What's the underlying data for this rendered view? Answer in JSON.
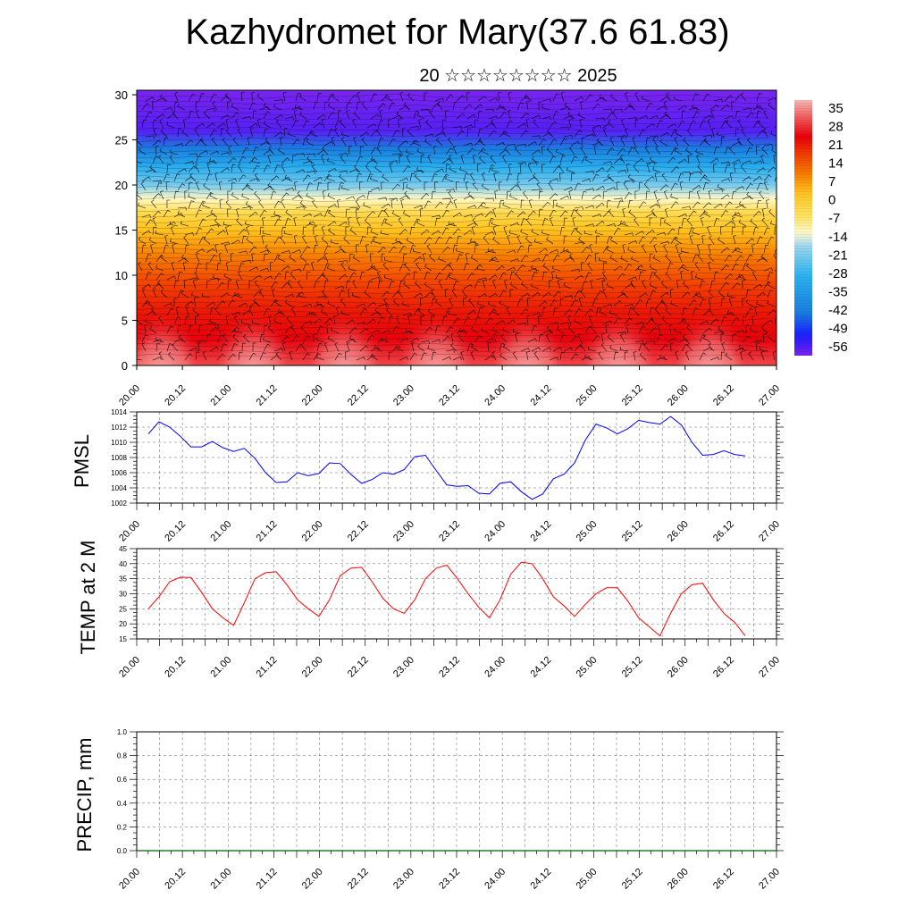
{
  "title": "Kazhydromet for Mary(37.6 61.83)",
  "subtitle": "20 ☆☆☆☆☆☆☆☆ 2025",
  "chart_data": [
    {
      "type": "heatmap",
      "name": "vertical-section",
      "x_ticks": [
        "20.00",
        "20.12",
        "21.00",
        "21.12",
        "22.00",
        "22.12",
        "23.00",
        "23.12",
        "24.00",
        "24.12",
        "25.00",
        "25.12",
        "26.00",
        "26.12",
        "27.00"
      ],
      "y_ticks": [
        "0",
        "5",
        "10",
        "15",
        "20",
        "25",
        "30"
      ],
      "ylim": [
        0,
        30.5
      ],
      "colorbar_labels": [
        "35",
        "28",
        "21",
        "14",
        "7",
        "0",
        "-7",
        "-14",
        "-21",
        "-28",
        "-35",
        "-42",
        "-49",
        "-56"
      ],
      "colorbar_range": [
        -63,
        42
      ],
      "layers": [
        {
          "level": 0,
          "value": 33
        },
        {
          "level": 3,
          "value": 27
        },
        {
          "level": 6,
          "value": 24
        },
        {
          "level": 9,
          "value": 19
        },
        {
          "level": 12,
          "value": 12
        },
        {
          "level": 15,
          "value": 4
        },
        {
          "level": 17,
          "value": -3
        },
        {
          "level": 18.5,
          "value": -12
        },
        {
          "level": 20,
          "value": -22
        },
        {
          "level": 22,
          "value": -32
        },
        {
          "level": 24,
          "value": -45
        },
        {
          "level": 26,
          "value": -60
        },
        {
          "level": 30.5,
          "value": -63
        }
      ],
      "colors": {
        "hot": "#f7b7b7",
        "warm": "#e8000b",
        "orange": "#f77a00",
        "yellow": "#ffe566",
        "pale": "#fffbd6",
        "cyan": "#9ed7ef",
        "blue": "#1a7fe0",
        "deep": "#1a1aff",
        "violet": "#7a24ef"
      }
    },
    {
      "type": "line",
      "name": "pmsl",
      "ylabel": "PMSL",
      "ylim": [
        1002,
        1014
      ],
      "y_ticks": [
        "1002",
        "1004",
        "1006",
        "1008",
        "1010",
        "1012",
        "1014"
      ],
      "x_ticks": [
        "20.00",
        "20.12",
        "21.00",
        "21.12",
        "22.00",
        "22.12",
        "23.00",
        "23.12",
        "24.00",
        "24.12",
        "25.00",
        "25.12",
        "26.00",
        "26.12",
        "27.00"
      ],
      "color": "#0000ff",
      "values": [
        1011.1,
        1012.7,
        1012.0,
        1010.8,
        1009.4,
        1009.4,
        1010.1,
        1009.3,
        1008.8,
        1009.2,
        1007.9,
        1006.0,
        1004.7,
        1004.8,
        1006.0,
        1005.6,
        1005.9,
        1007.3,
        1007.2,
        1005.8,
        1004.6,
        1005.1,
        1006.0,
        1005.8,
        1006.4,
        1008.1,
        1008.3,
        1006.3,
        1004.4,
        1004.2,
        1004.3,
        1003.3,
        1003.2,
        1004.6,
        1004.8,
        1003.5,
        1002.5,
        1003.2,
        1005.2,
        1005.8,
        1007.3,
        1010.3,
        1012.4,
        1011.9,
        1011.1,
        1011.8,
        1012.9,
        1012.6,
        1012.4,
        1013.4,
        1012.3,
        1010.0,
        1008.3,
        1008.4,
        1008.9,
        1008.4,
        1008.2
      ]
    },
    {
      "type": "line",
      "name": "temp",
      "ylabel": "TEMP at 2 M",
      "ylim": [
        15,
        45
      ],
      "y_ticks": [
        "15",
        "20",
        "25",
        "30",
        "35",
        "40",
        "45"
      ],
      "x_ticks": [
        "20.00",
        "20.12",
        "21.00",
        "21.12",
        "22.00",
        "22.12",
        "23.00",
        "23.12",
        "24.00",
        "24.12",
        "25.00",
        "25.12",
        "26.00",
        "26.12",
        "27.00"
      ],
      "color": "#ff0000",
      "values": [
        25,
        29,
        34,
        35.5,
        35.4,
        30.5,
        25,
        22,
        19.5,
        27,
        35,
        37,
        37.3,
        33,
        28,
        25,
        22.5,
        28,
        36,
        38.5,
        38.8,
        34,
        28.5,
        25,
        23.5,
        28,
        35,
        38.5,
        39.5,
        35,
        30,
        25.5,
        22,
        28,
        36.5,
        40.5,
        40,
        35,
        29,
        26,
        22.5,
        26.5,
        30,
        32,
        32,
        27.5,
        22,
        19,
        16,
        23.5,
        30,
        33,
        33.5,
        28,
        23.5,
        20.5,
        16
      ]
    },
    {
      "type": "line",
      "name": "precip",
      "ylabel": "PRECIP, mm",
      "ylim": [
        0,
        1
      ],
      "y_ticks": [
        "0.0",
        "0.2",
        "0.4",
        "0.6",
        "0.8",
        "1.0"
      ],
      "x_ticks": [
        "20.00",
        "20.12",
        "21.00",
        "21.12",
        "22.00",
        "22.12",
        "23.00",
        "23.12",
        "24.00",
        "24.12",
        "25.00",
        "25.12",
        "26.00",
        "26.12",
        "27.00"
      ],
      "color": "#006400",
      "values": [
        0,
        0
      ]
    }
  ]
}
